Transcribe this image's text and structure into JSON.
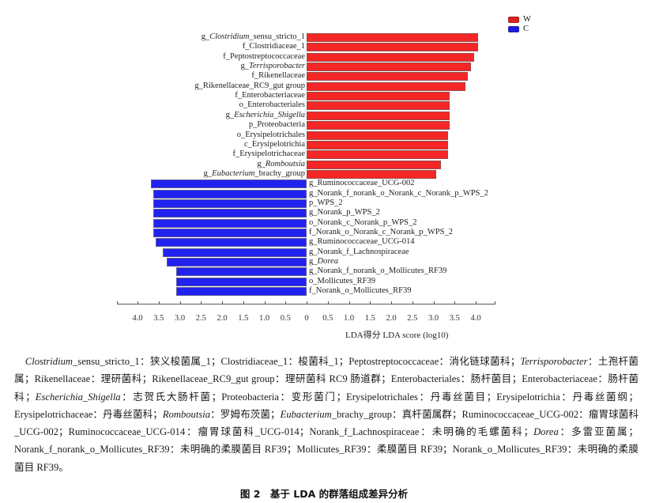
{
  "chart_data": {
    "type": "bar",
    "orientation": "horizontal-diverging",
    "title": "",
    "xlabel": "LDA得分  LDA score (log10)",
    "ylabel": "",
    "xlim": [
      -4.4,
      4.4
    ],
    "x_ticks": [
      "4.0",
      "3.5",
      "3.0",
      "2.5",
      "2.0",
      "1.5",
      "1.0",
      "0.5",
      "0",
      "0.5",
      "1.0",
      "1.5",
      "2.0",
      "2.5",
      "3.0",
      "3.5",
      "4.0"
    ],
    "legend": [
      {
        "name": "W",
        "color": "#f52626"
      },
      {
        "name": "C",
        "color": "#2222f0"
      }
    ],
    "legend_position": "top-right",
    "grid": false,
    "series": [
      {
        "name": "W",
        "color": "#f52626",
        "categories": [
          "g_Clostridium_sensu_stricto_1",
          "f_Clostridiaceae_1",
          "f_Peptostreptococcaceae",
          "g_Terrisporobacter",
          "f_Rikenellaceae",
          "g_Rikenellaceae_RC9_gut group",
          "f_Enterobacteriaceae",
          "o_Enterobacteriales",
          "g_Escherichia_Shigella",
          "p_Proteobacteria",
          "o_Erysipelotrichales",
          "c_Erysipelotrichia",
          "f_Erysipelotrichaceae",
          "g_Romboutsia",
          "g_Eubacterium_brachy_group"
        ],
        "values": [
          4.06,
          4.05,
          3.96,
          3.89,
          3.81,
          3.76,
          3.38,
          3.38,
          3.38,
          3.38,
          3.35,
          3.35,
          3.35,
          3.18,
          3.06
        ]
      },
      {
        "name": "C",
        "color": "#2222f0",
        "categories": [
          "g_Ruminococcaceae_UCG-002",
          "g_Norank_f_norank_o_Norank_c_Norank_p_WPS_2",
          "p_WPS_2",
          "g_Norank_p_WPS_2",
          "o_Norank_c_Norank_p_WPS_2",
          "f_Norank_o_Norank_c_Norank_p_WPS_2",
          "g_Ruminococcaceae_UCG-014",
          "g_Norank_f_Lachnospiraceae",
          "g_Dorea",
          "g_Norank_f_norank_o_Mollicutes_RF39",
          "o_Mollicutes_RF39",
          "f_Norank_o_Mollicutes_RF39"
        ],
        "values": [
          -3.68,
          -3.62,
          -3.62,
          -3.62,
          -3.62,
          -3.62,
          -3.57,
          -3.4,
          -3.31,
          -3.08,
          -3.08,
          -3.08
        ]
      }
    ]
  },
  "labels": {
    "W": [
      {
        "pre": "g_",
        "it": "Clostridium",
        "post": "_sensu_stricto_1"
      },
      {
        "pre": "f_Clostridiaceae_1",
        "it": "",
        "post": ""
      },
      {
        "pre": "f_Peptostreptococcaceae",
        "it": "",
        "post": ""
      },
      {
        "pre": "g_",
        "it": "Terrisporobacter",
        "post": ""
      },
      {
        "pre": "f_Rikenellaceae",
        "it": "",
        "post": ""
      },
      {
        "pre": "g_Rikenellaceae_RC9_gut group",
        "it": "",
        "post": ""
      },
      {
        "pre": "f_Enterobacteriaceae",
        "it": "",
        "post": ""
      },
      {
        "pre": "o_Enterobacteriales",
        "it": "",
        "post": ""
      },
      {
        "pre": "g_",
        "it": "Escherichia_Shigella",
        "post": ""
      },
      {
        "pre": "p_Proteobacteria",
        "it": "",
        "post": ""
      },
      {
        "pre": "o_Erysipelotrichales",
        "it": "",
        "post": ""
      },
      {
        "pre": "c_Erysipelotrichia",
        "it": "",
        "post": ""
      },
      {
        "pre": "f_Erysipelotrichaceae",
        "it": "",
        "post": ""
      },
      {
        "pre": "g_",
        "it": "Romboutsia",
        "post": ""
      },
      {
        "pre": "g_",
        "it": "Eubacterium",
        "post": "_brachy_group"
      }
    ],
    "C": [
      {
        "pre": "g_Ruminococcaceae_UCG-002",
        "it": "",
        "post": ""
      },
      {
        "pre": "g_Norank_f_norank_o_Norank_c_Norank_p_WPS_2",
        "it": "",
        "post": ""
      },
      {
        "pre": "p_WPS_2",
        "it": "",
        "post": ""
      },
      {
        "pre": "g_Norank_p_WPS_2",
        "it": "",
        "post": ""
      },
      {
        "pre": "o_Norank_c_Norank_p_WPS_2",
        "it": "",
        "post": ""
      },
      {
        "pre": "f_Norank_o_Norank_c_Norank_p_WPS_2",
        "it": "",
        "post": ""
      },
      {
        "pre": "g_Ruminococcaceae_UCG-014",
        "it": "",
        "post": ""
      },
      {
        "pre": "g_Norank_f_Lachnospiraceae",
        "it": "",
        "post": ""
      },
      {
        "pre": "g_",
        "it": "Dorea",
        "post": ""
      },
      {
        "pre": "g_Norank_f_norank_o_Mollicutes_RF39",
        "it": "",
        "post": ""
      },
      {
        "pre": "o_Mollicutes_RF39",
        "it": "",
        "post": ""
      },
      {
        "pre": "f_Norank_o_Mollicutes_RF39",
        "it": "",
        "post": ""
      }
    ]
  },
  "caption": {
    "segments": [
      {
        "t": "Clostridium",
        "i": true
      },
      {
        "t": "_sensu_stricto_1：狭义梭菌属_1；Clostridiaceae_1：梭菌科_1；Peptostreptococcaceae：消化链球菌科；"
      },
      {
        "t": "Terrisporobacter",
        "i": true
      },
      {
        "t": "：土孢杆菌属；Rikenellaceae：理研菌科；Rikenellaceae_RC9_gut group：理研菌科 RC9 肠道群；Enterobacteriales：肠杆菌目；Enterobacteriaceae：肠杆菌科；"
      },
      {
        "t": "Escherichia_Shigella",
        "i": true
      },
      {
        "t": "：志贺氏大肠杆菌；Proteobacteria：变形菌门；Erysipelotrichales：丹毒丝菌目；Erysipelotrichia：丹毒丝菌纲；Erysipelotrichaceae：丹毒丝菌科；"
      },
      {
        "t": "Romboutsia",
        "i": true
      },
      {
        "t": "：罗姆布茨菌；"
      },
      {
        "t": "Eubacterium",
        "i": true
      },
      {
        "t": "_brachy_group：真杆菌属群；Ruminococcaceae_UCG-002：瘤胃球菌科_UCG-002；Ruminococcaceae_UCG-014：瘤胃球菌科_UCG-014；Norank_f_Lachnospiraceae：未明确的毛螺菌科；"
      },
      {
        "t": "Dorea",
        "i": true
      },
      {
        "t": "：多雷亚菌属；Norank_f_norank_o_Mollicutes_RF39：未明确的柔膜菌目 RF39；Mollicutes_RF39：柔膜菌目 RF39；Norank_o_Mollicutes_RF39：未明确的柔膜菌目 RF39。"
      }
    ]
  },
  "figure_title": "图 2　基于 LDA 的群落组成差异分析"
}
